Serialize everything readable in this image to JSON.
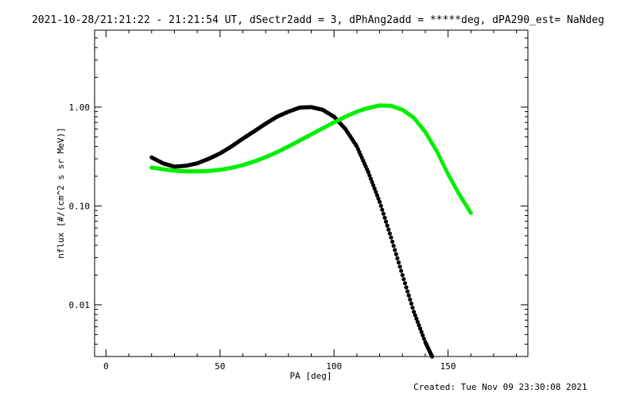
{
  "title": "2021-10-28/21:21:22 - 21:21:54 UT, dSectr2add = 3, dPhAng2add = *****deg, dPA290_est=  NaNdeg",
  "footer": "Created: Tue Nov 09 23:30:08 2021",
  "chart_data": {
    "type": "scatter",
    "xlabel": "PA [deg]",
    "ylabel": "nflux [#/(cm^2 s sr MeV)]",
    "xlim": [
      -5,
      185
    ],
    "ylim": [
      0.003,
      6.0
    ],
    "yscale": "log",
    "grid": false,
    "x_ticks": [
      {
        "value": 0,
        "label": "0"
      },
      {
        "value": 50,
        "label": "50"
      },
      {
        "value": 100,
        "label": "100"
      },
      {
        "value": 150,
        "label": "150"
      }
    ],
    "y_ticks": [
      {
        "value": 0.01,
        "label": "0.01"
      },
      {
        "value": 0.1,
        "label": "0.10"
      },
      {
        "value": 1.0,
        "label": "1.00"
      }
    ],
    "series": [
      {
        "color": "#000000",
        "x": [
          20,
          25,
          30,
          35,
          40,
          45,
          50,
          55,
          60,
          65,
          70,
          75,
          80,
          85,
          90,
          95,
          100,
          105,
          110,
          115,
          120,
          125,
          130,
          135,
          140,
          143
        ],
        "y": [
          0.31,
          0.27,
          0.25,
          0.255,
          0.27,
          0.3,
          0.34,
          0.4,
          0.48,
          0.57,
          0.68,
          0.8,
          0.9,
          0.99,
          1.0,
          0.94,
          0.8,
          0.6,
          0.4,
          0.22,
          0.11,
          0.048,
          0.02,
          0.0085,
          0.0042,
          0.003
        ]
      },
      {
        "color": "#00ee00",
        "x": [
          20,
          25,
          30,
          35,
          40,
          45,
          50,
          55,
          60,
          65,
          70,
          75,
          80,
          85,
          90,
          95,
          100,
          105,
          110,
          115,
          120,
          125,
          130,
          135,
          140,
          145,
          150,
          155,
          160
        ],
        "y": [
          0.245,
          0.235,
          0.228,
          0.224,
          0.224,
          0.226,
          0.232,
          0.243,
          0.259,
          0.282,
          0.312,
          0.35,
          0.4,
          0.46,
          0.53,
          0.61,
          0.7,
          0.8,
          0.9,
          0.98,
          1.04,
          1.03,
          0.94,
          0.78,
          0.56,
          0.36,
          0.21,
          0.13,
          0.085
        ]
      }
    ]
  }
}
